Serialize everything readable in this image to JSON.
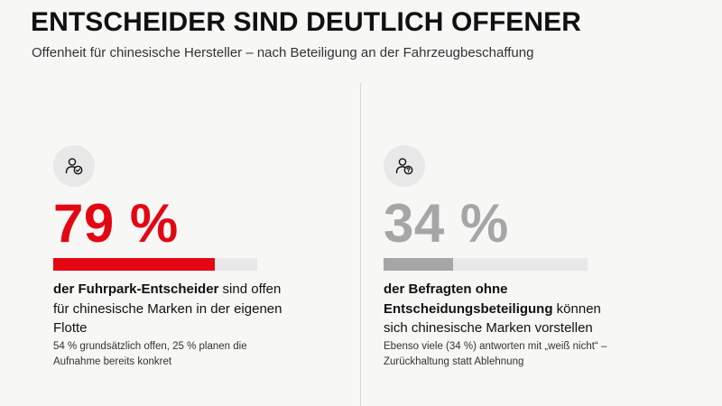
{
  "title": "ENTSCHEIDER SIND DEUTLICH OFFENER",
  "subtitle": "Offenheit für chinesische Hersteller – nach Beteiligung an der Fahrzeugbeschaffung",
  "panels": [
    {
      "icon": "user-check-icon",
      "value_text": "79 %",
      "value": 79,
      "color": "#e30613",
      "track_color": "#e8e8e8",
      "desc_bold": "der Fuhrpark-Entscheider",
      "desc_rest": " sind offen für chinesische Marken in der eigenen Flotte",
      "note": "54 % grundsätzlich offen, 25 % planen die Aufnahme bereits konkret"
    },
    {
      "icon": "user-question-icon",
      "value_text": "34 %",
      "value": 34,
      "color": "#a6a6a6",
      "track_color": "#e8e8e8",
      "desc_bold": "der Befragten ohne Entscheidungsbeteiligung",
      "desc_rest": " können sich chinesische Marken vorstellen",
      "note": "Ebenso viele (34 %) antworten mit „weiß nicht“ – Zurückhaltung statt Ablehnung"
    }
  ]
}
